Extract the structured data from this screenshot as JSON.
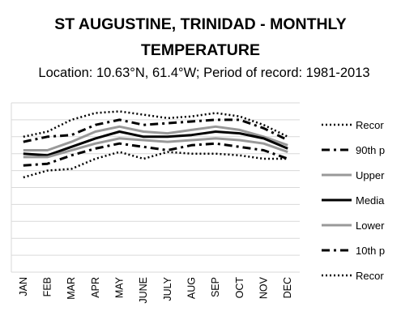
{
  "chart_data": {
    "type": "line",
    "title_line1": "ST AUGUSTINE, TRINIDAD - MONTHLY",
    "title_line2": "TEMPERATURE",
    "subtitle": "Location: 10.63°N, 61.4°W; Period of record: 1981-2013",
    "categories": [
      "JAN",
      "FEB",
      "MAR",
      "APR",
      "MAY",
      "JUNE",
      "JULY",
      "AUG",
      "SEP",
      "OCT",
      "NOV",
      "DEC"
    ],
    "ylim": [
      0,
      10
    ],
    "grid": true,
    "legend_position": "right",
    "series": [
      {
        "name": "Recor",
        "style": "dotted",
        "color": "#000000",
        "width": 2.5,
        "values": [
          8.0,
          8.3,
          9.0,
          9.4,
          9.5,
          9.3,
          9.1,
          9.2,
          9.4,
          9.2,
          8.7,
          8.0
        ]
      },
      {
        "name": "90th p",
        "style": "dashdot",
        "color": "#000000",
        "width": 3,
        "values": [
          7.7,
          8.0,
          8.1,
          8.7,
          9.0,
          8.7,
          8.8,
          8.9,
          9.0,
          9.0,
          8.5,
          7.8
        ]
      },
      {
        "name": "Upper",
        "style": "solid",
        "color": "#999999",
        "width": 3,
        "values": [
          7.2,
          7.2,
          7.7,
          8.3,
          8.6,
          8.3,
          8.2,
          8.4,
          8.6,
          8.4,
          8.0,
          7.5
        ]
      },
      {
        "name": "Media",
        "style": "solid",
        "color": "#000000",
        "width": 3,
        "values": [
          7.0,
          6.9,
          7.4,
          7.9,
          8.3,
          8.0,
          8.0,
          8.1,
          8.3,
          8.2,
          7.9,
          7.3
        ]
      },
      {
        "name": "Lower",
        "style": "solid",
        "color": "#999999",
        "width": 3,
        "values": [
          6.8,
          6.8,
          7.2,
          7.6,
          7.9,
          7.8,
          7.7,
          7.8,
          7.9,
          7.8,
          7.6,
          7.1
        ]
      },
      {
        "name": "10th p",
        "style": "dashdot",
        "color": "#000000",
        "width": 3,
        "values": [
          6.3,
          6.4,
          6.9,
          7.3,
          7.6,
          7.4,
          7.2,
          7.5,
          7.6,
          7.4,
          7.2,
          6.7
        ]
      },
      {
        "name": "Recor",
        "style": "dotted",
        "color": "#000000",
        "width": 2.5,
        "values": [
          5.6,
          6.0,
          6.1,
          6.7,
          7.1,
          6.7,
          7.1,
          7.0,
          7.0,
          6.9,
          6.7,
          6.7
        ]
      }
    ]
  }
}
